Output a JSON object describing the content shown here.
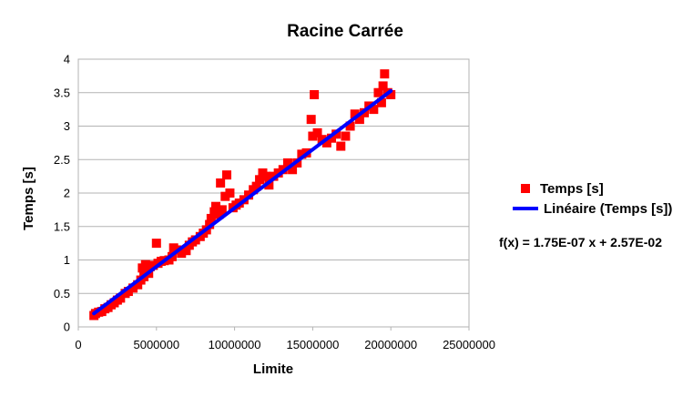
{
  "chart_data": {
    "type": "scatter",
    "title": "Racine Carrée",
    "xlabel": "Limite",
    "ylabel": "Temps [s]",
    "xlim": [
      0,
      25000000
    ],
    "ylim": [
      0,
      4
    ],
    "x_ticks": [
      0,
      5000000,
      10000000,
      15000000,
      20000000,
      25000000
    ],
    "x_tick_labels": [
      "0",
      "5000000",
      "10000000",
      "15000000",
      "20000000",
      "25000000"
    ],
    "y_ticks": [
      0,
      0.5,
      1,
      1.5,
      2,
      2.5,
      3,
      3.5,
      4
    ],
    "y_tick_labels": [
      "0",
      "0.5",
      "1",
      "1.5",
      "2",
      "2.5",
      "3",
      "3.5",
      "4"
    ],
    "grid": "horizontal",
    "legend_position": "right",
    "series": [
      {
        "name": "Temps [s]",
        "kind": "markers",
        "marker": "square",
        "color": "#ff0000",
        "points": [
          [
            1000000,
            0.17
          ],
          [
            1100000,
            0.2
          ],
          [
            1300000,
            0.22
          ],
          [
            1500000,
            0.23
          ],
          [
            1700000,
            0.27
          ],
          [
            1900000,
            0.29
          ],
          [
            2100000,
            0.33
          ],
          [
            2300000,
            0.36
          ],
          [
            2500000,
            0.4
          ],
          [
            2700000,
            0.43
          ],
          [
            3000000,
            0.5
          ],
          [
            3200000,
            0.53
          ],
          [
            3500000,
            0.58
          ],
          [
            3800000,
            0.63
          ],
          [
            4000000,
            0.7
          ],
          [
            4100000,
            0.88
          ],
          [
            4200000,
            0.75
          ],
          [
            4300000,
            0.93
          ],
          [
            4500000,
            0.8
          ],
          [
            4600000,
            0.9
          ],
          [
            4800000,
            0.92
          ],
          [
            5000000,
            1.25
          ],
          [
            5100000,
            0.95
          ],
          [
            5300000,
            0.98
          ],
          [
            5500000,
            0.99
          ],
          [
            5800000,
            1.0
          ],
          [
            6000000,
            1.05
          ],
          [
            6100000,
            1.18
          ],
          [
            6300000,
            1.15
          ],
          [
            6600000,
            1.1
          ],
          [
            6900000,
            1.14
          ],
          [
            7100000,
            1.22
          ],
          [
            7300000,
            1.27
          ],
          [
            7500000,
            1.3
          ],
          [
            7800000,
            1.35
          ],
          [
            8000000,
            1.4
          ],
          [
            8200000,
            1.45
          ],
          [
            8400000,
            1.53
          ],
          [
            8500000,
            1.62
          ],
          [
            8700000,
            1.72
          ],
          [
            8800000,
            1.8
          ],
          [
            9000000,
            1.68
          ],
          [
            9100000,
            2.15
          ],
          [
            9200000,
            1.75
          ],
          [
            9400000,
            1.95
          ],
          [
            9500000,
            2.27
          ],
          [
            9700000,
            2.0
          ],
          [
            9900000,
            1.78
          ],
          [
            10100000,
            1.82
          ],
          [
            10300000,
            1.85
          ],
          [
            10600000,
            1.9
          ],
          [
            10900000,
            1.97
          ],
          [
            11200000,
            2.05
          ],
          [
            11400000,
            2.1
          ],
          [
            11600000,
            2.2
          ],
          [
            11800000,
            2.3
          ],
          [
            12000000,
            2.25
          ],
          [
            12200000,
            2.12
          ],
          [
            12500000,
            2.25
          ],
          [
            12800000,
            2.3
          ],
          [
            13100000,
            2.35
          ],
          [
            13400000,
            2.45
          ],
          [
            13700000,
            2.35
          ],
          [
            14000000,
            2.45
          ],
          [
            14300000,
            2.58
          ],
          [
            14600000,
            2.6
          ],
          [
            14900000,
            3.1
          ],
          [
            15000000,
            2.85
          ],
          [
            15100000,
            3.47
          ],
          [
            15300000,
            2.9
          ],
          [
            15600000,
            2.8
          ],
          [
            15900000,
            2.75
          ],
          [
            16200000,
            2.82
          ],
          [
            16500000,
            2.88
          ],
          [
            16800000,
            2.7
          ],
          [
            17100000,
            2.85
          ],
          [
            17400000,
            3.0
          ],
          [
            17700000,
            3.18
          ],
          [
            18000000,
            3.1
          ],
          [
            18300000,
            3.2
          ],
          [
            18600000,
            3.3
          ],
          [
            18900000,
            3.25
          ],
          [
            19200000,
            3.5
          ],
          [
            19400000,
            3.35
          ],
          [
            19500000,
            3.6
          ],
          [
            19600000,
            3.78
          ],
          [
            19800000,
            3.5
          ],
          [
            20000000,
            3.47
          ]
        ]
      },
      {
        "name": "Linéaire (Temps [s])",
        "kind": "line",
        "color": "#0000ff",
        "slope": 1.75e-07,
        "intercept": 0.0257,
        "x_range": [
          1000000,
          20000000
        ]
      }
    ],
    "equation": "f(x) = 1.75E-07 x + 2.57E-02"
  }
}
